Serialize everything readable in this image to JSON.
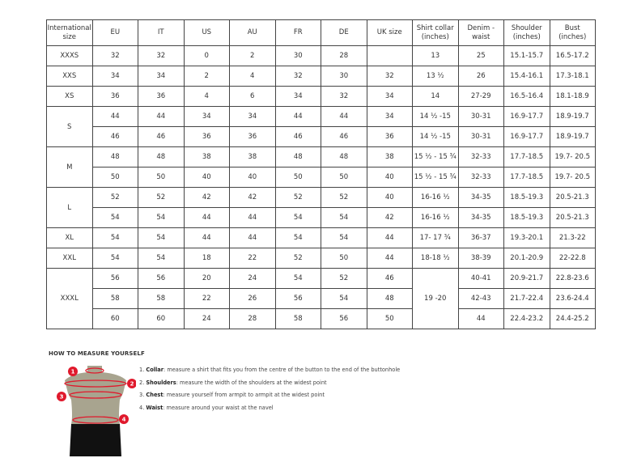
{
  "headers": [
    "International size",
    "EU",
    "IT",
    "US",
    "AU",
    "FR",
    "DE",
    "UK size",
    "Shirt collar (inches)",
    "Denim - waist",
    "Shoulder (inches)",
    "Bust (inches)"
  ],
  "rows": [
    {
      "intl": "XXXS",
      "span": 1,
      "cells": [
        "32",
        "32",
        "0",
        "2",
        "30",
        "28",
        ""
      ],
      "collar": "13",
      "collar_span": 1,
      "rest": [
        "25",
        "15.1-15.7",
        "16.5-17.2"
      ]
    },
    {
      "intl": "XXS",
      "span": 1,
      "cells": [
        "34",
        "34",
        "2",
        "4",
        "32",
        "30",
        "32"
      ],
      "collar": "13 ½",
      "collar_span": 1,
      "rest": [
        "26",
        "15.4-16.1",
        "17.3-18.1"
      ]
    },
    {
      "intl": "XS",
      "span": 1,
      "cells": [
        "36",
        "36",
        "4",
        "6",
        "34",
        "32",
        "34"
      ],
      "collar": "14",
      "collar_span": 1,
      "rest": [
        "27-29",
        "16.5-16.4",
        "18.1-18.9"
      ]
    },
    {
      "intl": "S",
      "span": 2,
      "cells": [
        "44",
        "44",
        "34",
        "34",
        "44",
        "44",
        "34"
      ],
      "collar": "14 ½ -15",
      "collar_span": 1,
      "rest": [
        "30-31",
        "16.9-17.7",
        "18.9-19.7"
      ]
    },
    {
      "cells": [
        "46",
        "46",
        "36",
        "36",
        "46",
        "46",
        "36"
      ],
      "collar": "14 ½ -15",
      "collar_span": 1,
      "rest": [
        "30-31",
        "16.9-17.7",
        "18.9-19.7"
      ]
    },
    {
      "intl": "M",
      "span": 2,
      "cells": [
        "48",
        "48",
        "38",
        "38",
        "48",
        "48",
        "38"
      ],
      "collar": "15 ½ - 15 ¾",
      "collar_span": 1,
      "rest": [
        "32-33",
        "17.7-18.5",
        "19.7- 20.5"
      ]
    },
    {
      "cells": [
        "50",
        "50",
        "40",
        "40",
        "50",
        "50",
        "40"
      ],
      "collar": "15 ½ - 15 ¾",
      "collar_span": 1,
      "rest": [
        "32-33",
        "17.7-18.5",
        "19.7- 20.5"
      ]
    },
    {
      "intl": "L",
      "span": 2,
      "cells": [
        "52",
        "52",
        "42",
        "42",
        "52",
        "52",
        "40"
      ],
      "collar": "16-16 ½",
      "collar_span": 1,
      "rest": [
        "34-35",
        "18.5-19.3",
        "20.5-21.3"
      ]
    },
    {
      "cells": [
        "54",
        "54",
        "44",
        "44",
        "54",
        "54",
        "42"
      ],
      "collar": "16-16 ½",
      "collar_span": 1,
      "rest": [
        "34-35",
        "18.5-19.3",
        "20.5-21.3"
      ]
    },
    {
      "intl": "XL",
      "span": 1,
      "cells": [
        "54",
        "54",
        "44",
        "44",
        "54",
        "54",
        "44"
      ],
      "collar": "17- 17 ¾",
      "collar_span": 1,
      "rest": [
        "36-37",
        "19.3-20.1",
        "21.3-22"
      ]
    },
    {
      "intl": "XXL",
      "span": 1,
      "cells": [
        "54",
        "54",
        "18",
        "22",
        "52",
        "50",
        "44"
      ],
      "collar": "18-18 ½",
      "collar_span": 1,
      "rest": [
        "38-39",
        "20.1-20.9",
        "22-22.8"
      ]
    },
    {
      "intl": "XXXL",
      "span": 3,
      "cells": [
        "56",
        "56",
        "20",
        "24",
        "54",
        "52",
        "46"
      ],
      "collar": "19 -20",
      "collar_span": 3,
      "rest": [
        "40-41",
        "20.9-21.7",
        "22.8-23.6"
      ]
    },
    {
      "cells": [
        "58",
        "58",
        "22",
        "26",
        "56",
        "54",
        "48"
      ],
      "rest": [
        "42-43",
        "21.7-22.4",
        "23.6-24.4"
      ]
    },
    {
      "cells": [
        "60",
        "60",
        "24",
        "28",
        "58",
        "56",
        "50"
      ],
      "rest": [
        "44",
        "22.4-23.2",
        "24.4-25.2"
      ]
    }
  ],
  "howto": {
    "title": "HOW TO MEASURE YOURSELF",
    "steps": [
      {
        "num": "1.",
        "term": "Collar",
        "text": ": measure a shirt that fits you from the centre of the button to the end of the buttonhole"
      },
      {
        "num": "2.",
        "term": "Shoulders",
        "text": ": measure the width of the shoulders at the widest point"
      },
      {
        "num": "3.",
        "term": "Chest",
        "text": ": measure yourself from armpit to armpit at the widest point"
      },
      {
        "num": "4.",
        "term": "Waist",
        "text": ": measure around your waist at the navel"
      }
    ],
    "markers": [
      "1",
      "2",
      "3",
      "4"
    ]
  },
  "colors": {
    "marker": "#e0192c",
    "torso": "#a8a48f",
    "shorts": "#111111"
  }
}
